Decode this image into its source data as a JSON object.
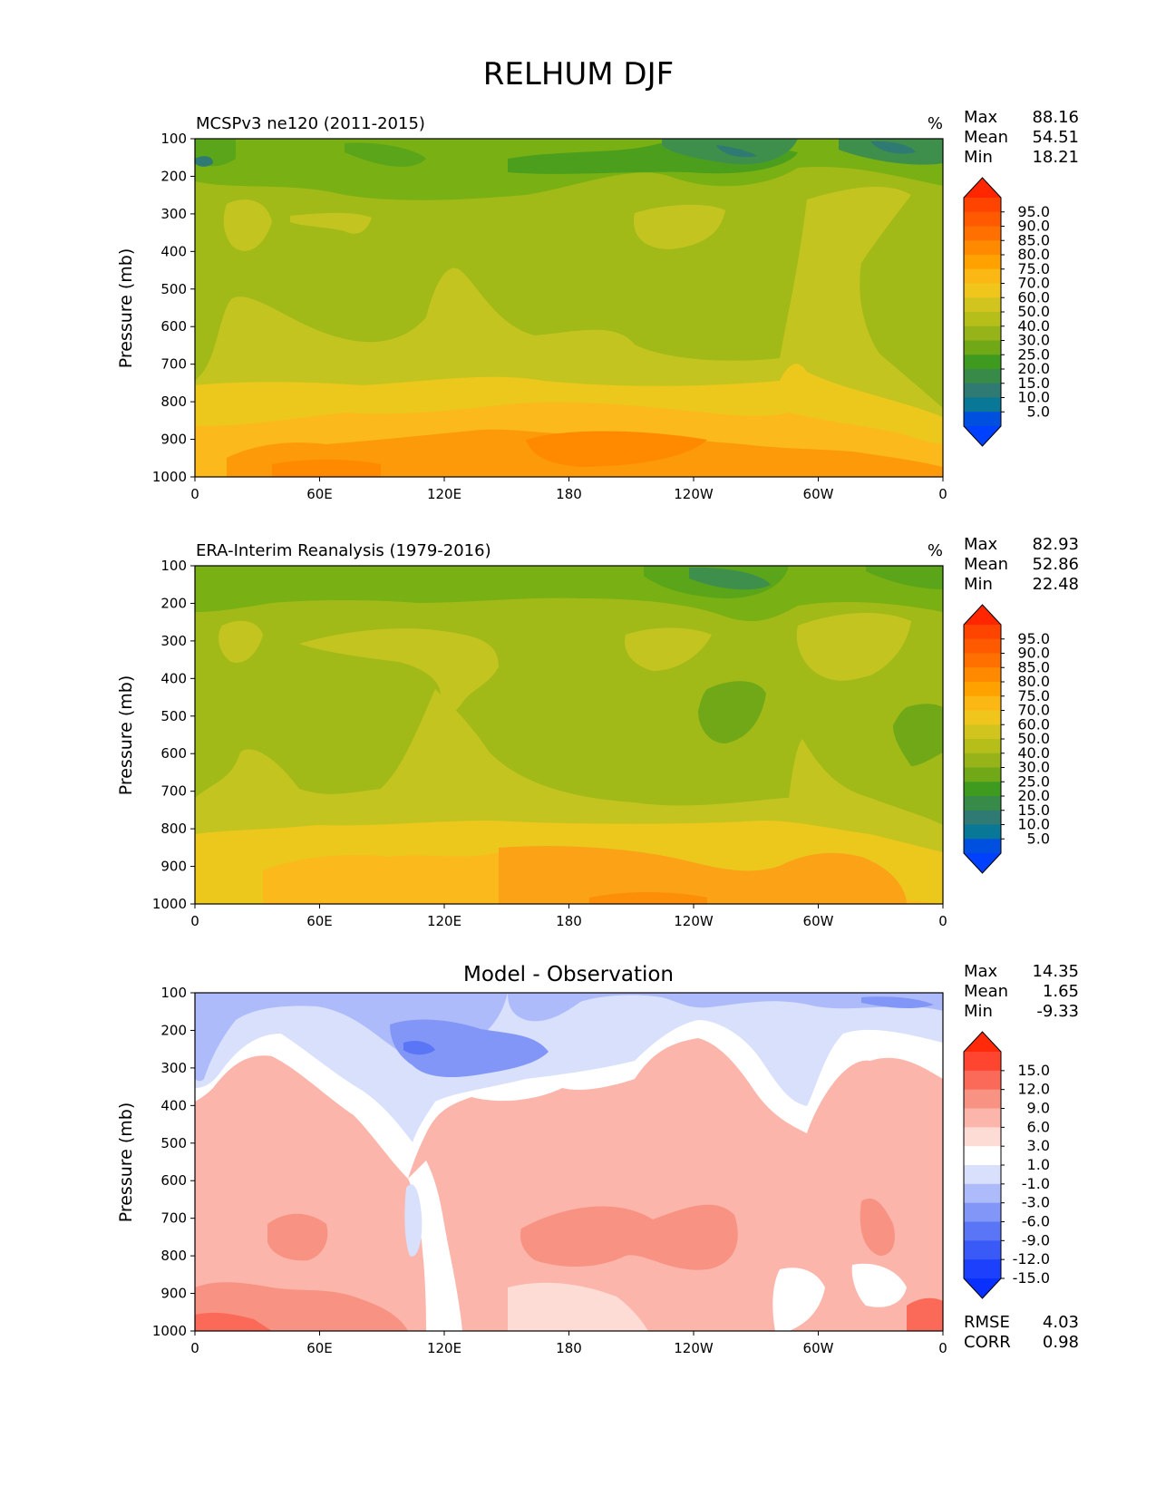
{
  "title": "RELHUM DJF",
  "chart_data": [
    {
      "type": "heatmap",
      "title": "MCSPv3 ne120 (2011-2015)",
      "units": "%",
      "ylabel": "Pressure (mb)",
      "x_ticks": [
        "0",
        "60E",
        "120E",
        "180",
        "120W",
        "60W",
        "0"
      ],
      "y_ticks": [
        "100",
        "200",
        "300",
        "400",
        "500",
        "600",
        "700",
        "800",
        "900",
        "1000"
      ],
      "xlim": [
        0,
        360
      ],
      "ylim": [
        1000,
        100
      ],
      "stats": [
        {
          "label": "Max",
          "value": "88.16"
        },
        {
          "label": "Mean",
          "value": "54.51"
        },
        {
          "label": "Min",
          "value": "18.21"
        }
      ],
      "colorbar": {
        "levels": [
          "95.0",
          "90.0",
          "85.0",
          "80.0",
          "75.0",
          "70.0",
          "60.0",
          "50.0",
          "40.0",
          "30.0",
          "25.0",
          "20.0",
          "15.0",
          "10.0",
          "5.0"
        ],
        "top_color": "#ff2600",
        "bottom_color": "#0040ff",
        "colors": [
          "#ff4400",
          "#ff5a00",
          "#ff7000",
          "#ff8a00",
          "#ffa200",
          "#fbb714",
          "#f0c61c",
          "#d2c41e",
          "#b6be1a",
          "#96b41a",
          "#70a818",
          "#3f9a20",
          "#388a48",
          "#2f7a72",
          "#087896",
          "#0050e0"
        ]
      },
      "grid": "off"
    },
    {
      "type": "heatmap",
      "title": "ERA-Interim Reanalysis (1979-2016)",
      "units": "%",
      "ylabel": "Pressure (mb)",
      "x_ticks": [
        "0",
        "60E",
        "120E",
        "180",
        "120W",
        "60W",
        "0"
      ],
      "y_ticks": [
        "100",
        "200",
        "300",
        "400",
        "500",
        "600",
        "700",
        "800",
        "900",
        "1000"
      ],
      "xlim": [
        0,
        360
      ],
      "ylim": [
        1000,
        100
      ],
      "stats": [
        {
          "label": "Max",
          "value": "82.93"
        },
        {
          "label": "Mean",
          "value": "52.86"
        },
        {
          "label": "Min",
          "value": "22.48"
        }
      ],
      "colorbar": {
        "levels": [
          "95.0",
          "90.0",
          "85.0",
          "80.0",
          "75.0",
          "70.0",
          "60.0",
          "50.0",
          "40.0",
          "30.0",
          "25.0",
          "20.0",
          "15.0",
          "10.0",
          "5.0"
        ],
        "top_color": "#ff2600",
        "bottom_color": "#0040ff",
        "colors": [
          "#ff4400",
          "#ff5a00",
          "#ff7000",
          "#ff8a00",
          "#ffa200",
          "#fbb714",
          "#f0c61c",
          "#d2c41e",
          "#b6be1a",
          "#96b41a",
          "#70a818",
          "#3f9a20",
          "#388a48",
          "#2f7a72",
          "#087896",
          "#0050e0"
        ]
      },
      "grid": "off"
    },
    {
      "type": "heatmap",
      "title": "Model - Observation",
      "units": "",
      "ylabel": "Pressure (mb)",
      "x_ticks": [
        "0",
        "60E",
        "120E",
        "180",
        "120W",
        "60W",
        "0"
      ],
      "y_ticks": [
        "100",
        "200",
        "300",
        "400",
        "500",
        "600",
        "700",
        "800",
        "900",
        "1000"
      ],
      "xlim": [
        0,
        360
      ],
      "ylim": [
        1000,
        100
      ],
      "stats": [
        {
          "label": "Max",
          "value": "14.35"
        },
        {
          "label": "Mean",
          "value": "1.65"
        },
        {
          "label": "Min",
          "value": "-9.33"
        }
      ],
      "extra_stats": [
        {
          "label": "RMSE",
          "value": "4.03"
        },
        {
          "label": "CORR",
          "value": "0.98"
        }
      ],
      "colorbar": {
        "levels": [
          "15.0",
          "12.0",
          "9.0",
          "6.0",
          "3.0",
          "1.0",
          "-1.0",
          "-3.0",
          "-6.0",
          "-9.0",
          "-12.0",
          "-15.0"
        ],
        "top_color": "#ff2a0a",
        "bottom_color": "#0a30ff",
        "colors": [
          "#ff4530",
          "#fb6a58",
          "#f89282",
          "#fbb5aa",
          "#fedcd6",
          "#ffffff",
          "#d8e0fc",
          "#adbbfa",
          "#8196f6",
          "#5a76f6",
          "#3a5af8",
          "#1c40fc"
        ]
      },
      "grid": "off"
    }
  ]
}
